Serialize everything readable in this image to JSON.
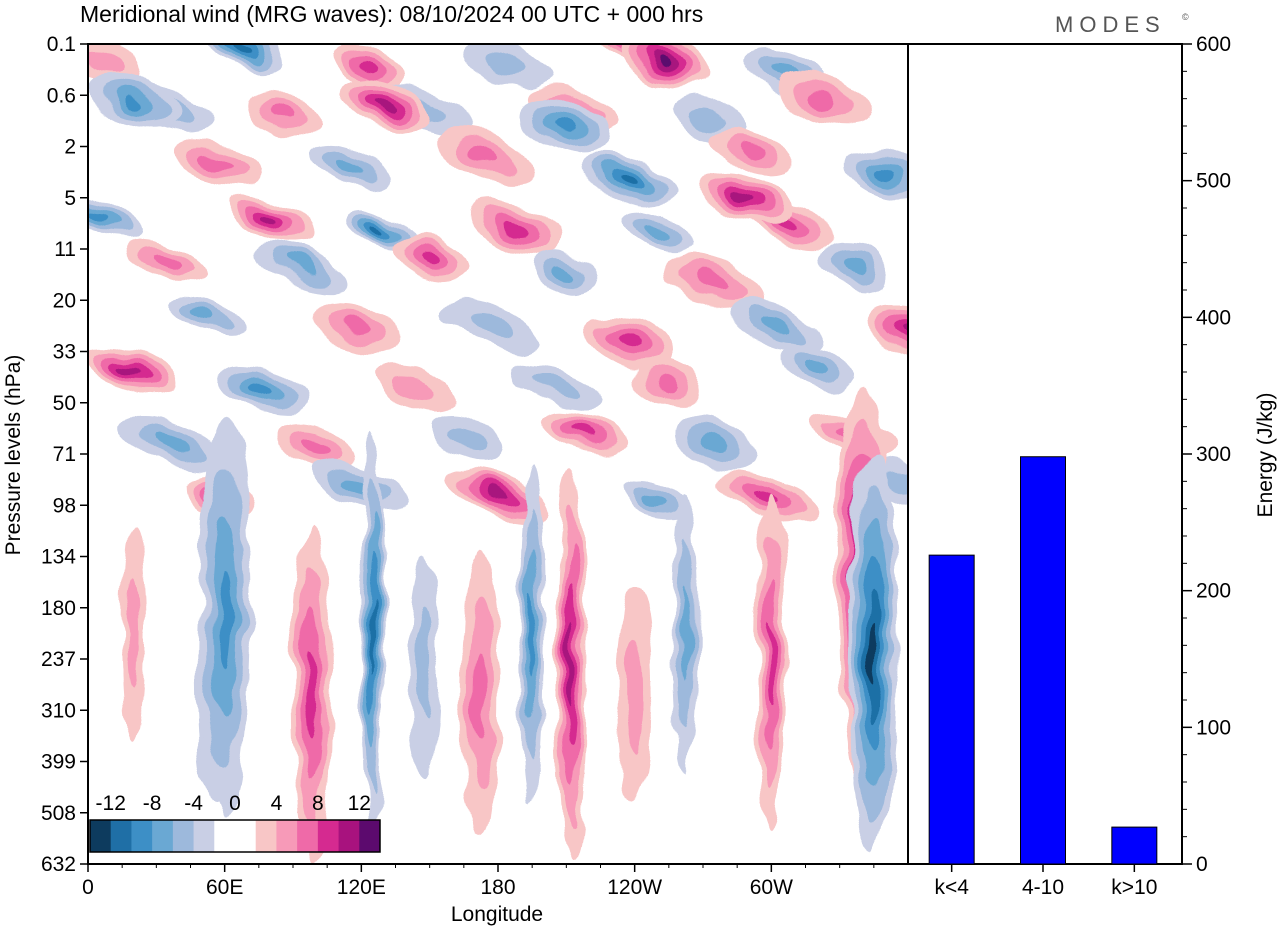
{
  "title": "Meridional wind (MRG waves):  08/10/2024  00 UTC  + 000 hrs",
  "logo": "MODES",
  "logo_mark": "©",
  "chart_data": [
    {
      "type": "heatmap",
      "title": "Meridional wind (MRG waves):  08/10/2024  00 UTC  + 000 hrs",
      "xlabel": "Longitude",
      "ylabel": "Pressure levels (hPa)",
      "x_ticks": [
        "0",
        "60E",
        "120E",
        "180",
        "120W",
        "60W"
      ],
      "y_ticks": [
        "0.1",
        "0.6",
        "2",
        "5",
        "11",
        "20",
        "33",
        "50",
        "71",
        "98",
        "134",
        "180",
        "237",
        "310",
        "399",
        "508",
        "632"
      ],
      "colorbar": {
        "tick_labels": [
          "-12",
          "-8",
          "-4",
          "0",
          "4",
          "8",
          "12"
        ],
        "colors": [
          "#0d3b5e",
          "#1f6fa6",
          "#3d8fc6",
          "#6aa8d3",
          "#9db9dc",
          "#c9cfe5",
          "#ffffff",
          "#ffffff",
          "#f8c6c6",
          "#f79ab8",
          "#ef6aa8",
          "#d52a90",
          "#a8127e",
          "#5c0a6e"
        ]
      },
      "features": [
        {
          "lon": 340,
          "p_idx": 10.6,
          "sign": "positive",
          "peak": 14
        },
        {
          "lon": 345,
          "p_idx": 11.9,
          "sign": "negative",
          "peak": -13
        },
        {
          "lon": 253,
          "p_idx": 0.3,
          "sign": "positive",
          "peak": 14
        },
        {
          "lon": 60,
          "p_idx": 11.2,
          "sign": "negative",
          "peak": -8
        },
        {
          "lon": 20,
          "p_idx": 1.1,
          "sign": "negative",
          "peak": -8
        },
        {
          "lon": 130,
          "p_idx": 1.2,
          "sign": "positive",
          "peak": 10
        },
        {
          "lon": 210,
          "p_idx": 1.6,
          "sign": "negative",
          "peak": -8
        },
        {
          "lon": 288,
          "p_idx": 3.0,
          "sign": "positive",
          "peak": 10
        }
      ]
    },
    {
      "type": "bar",
      "categories": [
        "k<4",
        "4-10",
        "k>10"
      ],
      "values": [
        226,
        298,
        27
      ],
      "ylabel": "Energy (J/kg)",
      "ylim": [
        0,
        600
      ],
      "y_ticks": [
        "0",
        "100",
        "200",
        "300",
        "400",
        "500",
        "600"
      ],
      "bar_color": "#0000ff"
    }
  ]
}
